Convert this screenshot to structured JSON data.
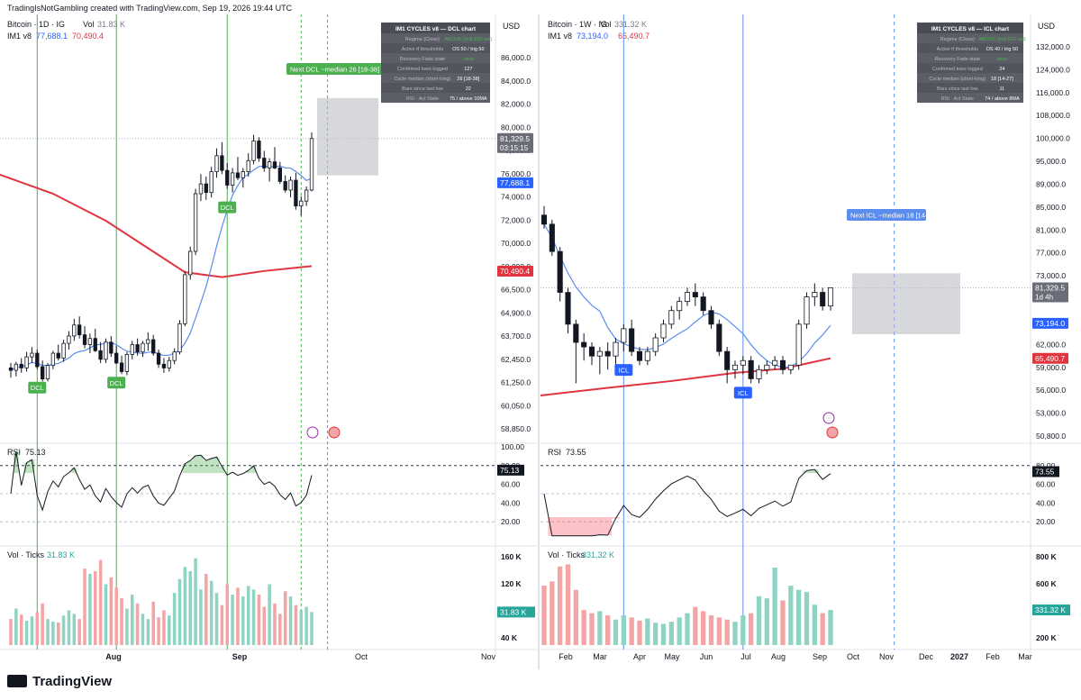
{
  "header": {
    "text": "TradingIsNotGambling created with TradingView.com, Sep 19, 2026 19:44 UTC"
  },
  "footer": {
    "brand": "TradingView"
  },
  "colors": {
    "up": "#ffffff",
    "down": "#131722",
    "sma": "#5b8def",
    "ema": "#e0343f",
    "cycle_line_green": "#4caf50",
    "cycle_line_blue": "#2962ff",
    "vol_up": "#8fd3c3",
    "vol_down": "#f4a4a4"
  },
  "chart_data": [
    {
      "type": "candlestick",
      "name": "left",
      "legend_title": "Bitcoin · 1D · IG",
      "vol_label": "Vol",
      "vol_value": "31.83 K",
      "indicator_label": "IM1 v8",
      "indicator_val1": "77,688.1",
      "indicator_val2": "70,490.4",
      "currency": "USD",
      "price_ticks": [
        "86,000.0",
        "84,000.0",
        "82,000.0",
        "80,000.0",
        "78,000.0",
        "76,000.0",
        "74,000.0",
        "72,000.0",
        "70,000.0",
        "68,000.0",
        "66,500.0",
        "64,900.0",
        "63,700.0",
        "62,450.0",
        "61,250.0",
        "60,050.0",
        "58,850.0"
      ],
      "price_badges": [
        {
          "text": "81,329.5",
          "sub": "03:15:15",
          "kind": "last"
        },
        {
          "text": "77,688.1",
          "kind": "sma"
        },
        {
          "text": "70,490.4",
          "kind": "ema"
        }
      ],
      "x_labels": [
        "Aug",
        "Sep",
        "Oct",
        "Nov"
      ],
      "cycle_markers": [
        {
          "label": "DCL"
        },
        {
          "label": "DCL"
        },
        {
          "label": "DCL"
        }
      ],
      "projection": {
        "label": "Next DCL ~median 26 [18-38]"
      },
      "info_table": {
        "title": "IM1 CYCLES v8 — DCL chart",
        "rows": [
          [
            "Regime (Close)",
            "ABOVE (bull EGI set)"
          ],
          [
            "Active tf thresholds",
            "OS 50 / trig 50"
          ],
          [
            "Recovery Fade state",
            "clear"
          ],
          [
            "Confirmed lows logged",
            "127"
          ],
          [
            "Cycle median (short-long)",
            "26 [18-38]"
          ],
          [
            "Bars since last low",
            "22"
          ],
          [
            "RSI · Act State",
            "75 / above 10MA"
          ]
        ]
      },
      "rsi": {
        "label": "RSI",
        "value": "75.13",
        "ticks": [
          "100.00",
          "80.00",
          "60.00",
          "40.00",
          "20.00"
        ]
      },
      "volume": {
        "label": "Vol · Ticks",
        "value": "31.83 K",
        "ticks": [
          "160 K",
          "120 K",
          "80 K",
          "40 K"
        ]
      },
      "candles": [
        [
          62.6,
          63.0,
          61.8,
          62.4
        ],
        [
          62.4,
          63.1,
          61.9,
          62.9
        ],
        [
          62.9,
          63.4,
          62.2,
          62.6
        ],
        [
          62.6,
          63.9,
          62.3,
          63.5
        ],
        [
          63.5,
          64.3,
          63.0,
          63.8
        ],
        [
          63.8,
          64.1,
          62.5,
          62.7
        ],
        [
          62.7,
          63.2,
          61.5,
          61.7
        ],
        [
          61.7,
          63.0,
          61.5,
          62.8
        ],
        [
          62.8,
          64.0,
          62.5,
          63.8
        ],
        [
          63.8,
          64.5,
          63.2,
          63.4
        ],
        [
          63.4,
          64.9,
          63.1,
          64.6
        ],
        [
          64.6,
          65.6,
          64.1,
          65.2
        ],
        [
          65.2,
          66.6,
          64.8,
          66.1
        ],
        [
          66.1,
          66.8,
          65.0,
          65.3
        ],
        [
          65.3,
          66.0,
          64.2,
          64.5
        ],
        [
          64.5,
          65.4,
          63.8,
          65.0
        ],
        [
          65.0,
          65.8,
          63.9,
          64.0
        ],
        [
          64.0,
          64.7,
          63.0,
          63.3
        ],
        [
          63.3,
          65.0,
          63.0,
          64.7
        ],
        [
          64.7,
          65.2,
          63.5,
          63.8
        ],
        [
          63.8,
          64.4,
          62.9,
          63.0
        ],
        [
          63.0,
          63.6,
          62.1,
          62.3
        ],
        [
          62.3,
          63.9,
          62.0,
          63.7
        ],
        [
          63.7,
          64.8,
          63.3,
          64.5
        ],
        [
          64.5,
          65.0,
          63.6,
          63.9
        ],
        [
          63.9,
          64.8,
          63.5,
          64.6
        ],
        [
          64.6,
          65.5,
          64.0,
          64.9
        ],
        [
          64.9,
          65.3,
          63.6,
          63.8
        ],
        [
          63.8,
          64.1,
          62.6,
          62.9
        ],
        [
          62.9,
          63.4,
          62.2,
          62.6
        ],
        [
          62.6,
          63.5,
          62.3,
          63.2
        ],
        [
          63.2,
          64.2,
          62.9,
          63.9
        ],
        [
          63.9,
          66.5,
          63.7,
          66.2
        ],
        [
          66.2,
          70.5,
          66.0,
          70.2
        ],
        [
          70.2,
          72.5,
          69.8,
          72.1
        ],
        [
          72.1,
          77.2,
          71.8,
          76.8
        ],
        [
          76.8,
          78.4,
          76.2,
          77.6
        ],
        [
          77.6,
          78.2,
          76.3,
          76.9
        ],
        [
          76.9,
          79.0,
          76.5,
          78.6
        ],
        [
          78.6,
          80.5,
          78.1,
          79.9
        ],
        [
          79.9,
          81.0,
          78.4,
          78.7
        ],
        [
          78.7,
          79.3,
          77.2,
          77.5
        ],
        [
          77.5,
          78.9,
          76.9,
          78.5
        ],
        [
          78.5,
          79.8,
          77.9,
          78.1
        ],
        [
          78.1,
          78.9,
          77.3,
          78.6
        ],
        [
          78.6,
          80.1,
          78.2,
          79.5
        ],
        [
          79.5,
          81.6,
          79.2,
          81.1
        ],
        [
          81.1,
          81.4,
          79.4,
          79.7
        ],
        [
          79.7,
          80.3,
          78.6,
          78.9
        ],
        [
          78.9,
          79.7,
          77.8,
          79.4
        ],
        [
          79.4,
          80.6,
          78.8,
          78.9
        ],
        [
          78.9,
          79.4,
          77.6,
          77.8
        ],
        [
          77.8,
          78.3,
          76.9,
          77.1
        ],
        [
          77.1,
          78.2,
          76.5,
          77.9
        ],
        [
          77.9,
          78.5,
          75.5,
          75.8
        ],
        [
          75.8,
          76.6,
          75.0,
          76.2
        ],
        [
          76.2,
          77.4,
          75.8,
          77.1
        ],
        [
          77.1,
          81.8,
          77.0,
          81.3
        ]
      ],
      "volumes": [
        30,
        42,
        35,
        28,
        33,
        38,
        48,
        30,
        27,
        26,
        34,
        40,
        36,
        30,
        88,
        82,
        85,
        98,
        70,
        78,
        66,
        54,
        42,
        58,
        48,
        36,
        30,
        50,
        32,
        40,
        34,
        60,
        76,
        90,
        85,
        100,
        64,
        82,
        74,
        60,
        46,
        70,
        58,
        66,
        56,
        68,
        64,
        58,
        44,
        70,
        48,
        36,
        62,
        56,
        46,
        40,
        44,
        38
      ]
    },
    {
      "type": "candlestick",
      "name": "right",
      "legend_title": "Bitcoin · 1W · IG",
      "vol_label": "Vol",
      "vol_value": "331.32 K",
      "indicator_label": "IM1 v8",
      "indicator_val1": "73,194.0",
      "indicator_val2": "65,490.7",
      "currency": "USD",
      "price_ticks": [
        "132,000.0",
        "124,000.0",
        "116,000.0",
        "108,000.0",
        "100,000.0",
        "95,000.0",
        "89,000.0",
        "85,000.0",
        "81,000.0",
        "77,000.0",
        "73,000.0",
        "69,000.0",
        "65,000.0",
        "62,000.0",
        "59,000.0",
        "56,000.0",
        "53,000.0",
        "50,800.0"
      ],
      "price_badges": [
        {
          "text": "81,329.5",
          "sub": "1d 4h",
          "kind": "last"
        },
        {
          "text": "73,194.0",
          "kind": "sma"
        },
        {
          "text": "65,490.7",
          "kind": "ema"
        }
      ],
      "x_labels": [
        "Feb",
        "Mar",
        "Apr",
        "May",
        "Jun",
        "Jul",
        "Aug",
        "Sep",
        "Oct",
        "Nov",
        "Dec",
        "2027",
        "Feb",
        "Mar"
      ],
      "cycle_markers": [
        {
          "label": "ICL"
        },
        {
          "label": "ICL"
        }
      ],
      "projection": {
        "label": "Next ICL ~median 18 [14-27]"
      },
      "info_table": {
        "title": "IM1 CYCLES v8 — ICL chart",
        "rows": [
          [
            "Regime (Close)",
            "ABOVE (bull EGI set)"
          ],
          [
            "Active tf thresholds",
            "OS 40 / trig 50"
          ],
          [
            "Recovery Fade state",
            "clear"
          ],
          [
            "Confirmed lows logged",
            "24"
          ],
          [
            "Cycle median (short-long)",
            "18 [14-27]"
          ],
          [
            "Bars since last low",
            "11"
          ],
          [
            "RSI · Act State",
            "74 / above 8MA"
          ]
        ]
      },
      "rsi": {
        "label": "RSI",
        "value": "73.55",
        "ticks": [
          "80.00",
          "60.00",
          "40.00",
          "20.00"
        ]
      },
      "volume": {
        "label": "Vol · Ticks",
        "value": "331.32 K",
        "ticks": [
          "800 K",
          "600 K",
          "400 K",
          "200 K"
        ]
      },
      "candles": [
        [
          97,
          99,
          94,
          95
        ],
        [
          95,
          96,
          88,
          89
        ],
        [
          89,
          90,
          78,
          80
        ],
        [
          80,
          81,
          71,
          73
        ],
        [
          73,
          74,
          60,
          69
        ],
        [
          69,
          71,
          65,
          68
        ],
        [
          68,
          69,
          64,
          66
        ],
        [
          66,
          68,
          62,
          67
        ],
        [
          67,
          69,
          63,
          66
        ],
        [
          66,
          70,
          64,
          69
        ],
        [
          69,
          73,
          67,
          72
        ],
        [
          72,
          74,
          66,
          67
        ],
        [
          67,
          68,
          64,
          65
        ],
        [
          65,
          68,
          64,
          67
        ],
        [
          67,
          71,
          66,
          70
        ],
        [
          70,
          74,
          69,
          73
        ],
        [
          73,
          77,
          72,
          76
        ],
        [
          76,
          79,
          74,
          78
        ],
        [
          78,
          81,
          77,
          80
        ],
        [
          80,
          82,
          77,
          79
        ],
        [
          79,
          80,
          75,
          76
        ],
        [
          76,
          77,
          72,
          73
        ],
        [
          73,
          74,
          66,
          67
        ],
        [
          67,
          68,
          60,
          63
        ],
        [
          63,
          65,
          61,
          64
        ],
        [
          64,
          66,
          62,
          65
        ],
        [
          65,
          66,
          60,
          61
        ],
        [
          61,
          64,
          60,
          63
        ],
        [
          63,
          65,
          62,
          64
        ],
        [
          64,
          66,
          63,
          65
        ],
        [
          65,
          66,
          62,
          63
        ],
        [
          63,
          64,
          62,
          64
        ],
        [
          64,
          74,
          63,
          73
        ],
        [
          73,
          80,
          72,
          79
        ],
        [
          79,
          82,
          77,
          80
        ],
        [
          80,
          81,
          76,
          77
        ],
        [
          77,
          81,
          76,
          81
        ]
      ],
      "volumes": [
        560,
        600,
        740,
        760,
        520,
        330,
        300,
        320,
        280,
        240,
        280,
        260,
        230,
        250,
        210,
        200,
        220,
        260,
        300,
        360,
        320,
        280,
        260,
        240,
        220,
        280,
        300,
        460,
        440,
        730,
        420,
        560,
        520,
        500,
        380,
        300,
        331
      ]
    }
  ]
}
